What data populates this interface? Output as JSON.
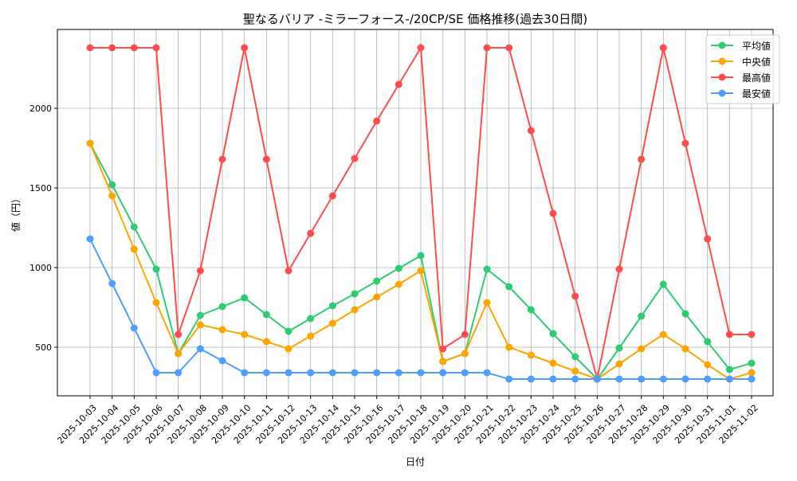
{
  "chart_data": {
    "type": "line",
    "title": "聖なるバリア -ミラーフォース-/20CP/SE 価格推移(過去30日間)",
    "xlabel": "日付",
    "ylabel": "値（円）",
    "x": [
      "2025-10-03",
      "2025-10-04",
      "2025-10-05",
      "2025-10-06",
      "2025-10-07",
      "2025-10-08",
      "2025-10-09",
      "2025-10-10",
      "2025-10-11",
      "2025-10-12",
      "2025-10-13",
      "2025-10-14",
      "2025-10-15",
      "2025-10-16",
      "2025-10-17",
      "2025-10-18",
      "2025-10-19",
      "2025-10-20",
      "2025-10-21",
      "2025-10-22",
      "2025-10-23",
      "2025-10-24",
      "2025-10-25",
      "2025-10-26",
      "2025-10-27",
      "2025-10-28",
      "2025-10-29",
      "2025-10-30",
      "2025-10-31",
      "2025-11-01",
      "2025-11-02"
    ],
    "yticks": [
      500,
      1000,
      1500,
      2000
    ],
    "ylim": [
      195,
      2495
    ],
    "grid": true,
    "legend_position": "top-right",
    "series": [
      {
        "name": "平均値",
        "color": "#2ecc71",
        "values": [
          1780,
          1520,
          1255,
          990,
          460,
          700,
          755,
          810,
          705,
          600,
          680,
          760,
          835,
          915,
          995,
          1075,
          410,
          460,
          990,
          880,
          735,
          585,
          440,
          300,
          495,
          695,
          895,
          710,
          535,
          360,
          400
        ]
      },
      {
        "name": "中央値",
        "color": "#ffa500",
        "values": [
          1780,
          1450,
          1115,
          780,
          460,
          640,
          610,
          580,
          535,
          490,
          570,
          650,
          735,
          815,
          895,
          980,
          410,
          460,
          780,
          500,
          450,
          400,
          350,
          300,
          395,
          490,
          580,
          490,
          390,
          300,
          340
        ]
      },
      {
        "name": "最高値",
        "color": "#ff4d4d",
        "values": [
          2380,
          2380,
          2380,
          2380,
          580,
          980,
          1680,
          2380,
          1680,
          980,
          1215,
          1450,
          1685,
          1920,
          2150,
          2380,
          490,
          580,
          2380,
          2380,
          1860,
          1340,
          820,
          300,
          990,
          1680,
          2380,
          1780,
          1180,
          580,
          580
        ]
      },
      {
        "name": "最安値",
        "color": "#4d9fff",
        "values": [
          1180,
          900,
          620,
          340,
          340,
          490,
          415,
          340,
          340,
          340,
          340,
          340,
          340,
          340,
          340,
          340,
          340,
          340,
          340,
          300,
          300,
          300,
          300,
          300,
          300,
          300,
          300,
          300,
          300,
          300,
          300
        ]
      }
    ]
  }
}
